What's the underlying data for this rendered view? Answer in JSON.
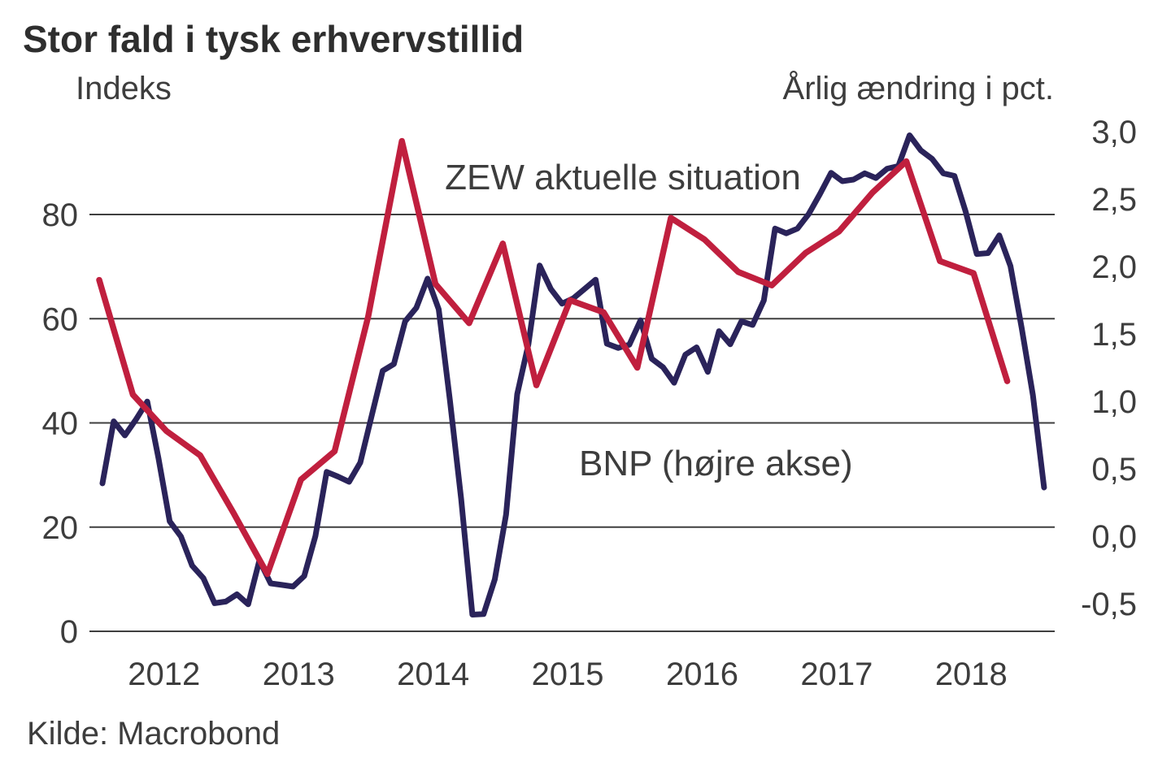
{
  "title": "Stor fald i tysk erhvervstillid",
  "source": "Kilde: Macrobond",
  "colors": {
    "zew_line": "#2A235A",
    "bnp_line": "#C01F3E",
    "gridline": "#3f3f3f",
    "text": "#3d3d3d",
    "title_text": "#2e2e2e"
  },
  "chart_data": {
    "type": "line",
    "title": "Stor fald i tysk erhvervstillid",
    "grid": "horizontal-only",
    "legend_position": "inline-annotations",
    "x_axis": {
      "tick_labels": [
        "2012",
        "2013",
        "2014",
        "2015",
        "2016",
        "2017",
        "2018"
      ]
    },
    "left_axis": {
      "label": "Indeks",
      "tick_labels": [
        "80",
        "60",
        "40",
        "20",
        "0"
      ],
      "tick_values": [
        80,
        60,
        40,
        20,
        0
      ]
    },
    "right_axis": {
      "label": "Årlig ændring i pct.",
      "tick_labels": [
        "3,0",
        "2,5",
        "2,0",
        "1,5",
        "1,0",
        "0,5",
        "0,0",
        "-0,5"
      ],
      "tick_values": [
        3.0,
        2.5,
        2.0,
        1.5,
        1.0,
        0.5,
        0.0,
        -0.5
      ]
    },
    "series": [
      {
        "name": "ZEW aktuelle situation",
        "axis": "left",
        "color": "#2A235A",
        "frequency": "monthly",
        "start": "2012-01",
        "end": "2019-01",
        "values": [
          28.4,
          40.3,
          37.6,
          40.7,
          44.1,
          33.2,
          21.1,
          18.2,
          12.6,
          10.2,
          5.4,
          5.7,
          7.1,
          5.2,
          13.6,
          9.2,
          8.9,
          8.6,
          10.6,
          18.3,
          30.6,
          29.7,
          28.7,
          32.4,
          41.2,
          50.0,
          51.3,
          59.5,
          62.1,
          67.7,
          61.8,
          44.3,
          25.4,
          3.2,
          3.3,
          10.0,
          22.4,
          45.5,
          55.1,
          70.2,
          65.7,
          62.9,
          63.9,
          65.7,
          67.5,
          55.2,
          54.4,
          55.0,
          59.7,
          52.3,
          50.7,
          47.7,
          53.1,
          54.5,
          49.8,
          57.6,
          55.1,
          59.5,
          58.8,
          63.5,
          77.3,
          76.4,
          77.3,
          80.1,
          83.9,
          88.0,
          86.4,
          86.7,
          87.9,
          87.0,
          88.8,
          89.3,
          95.2,
          92.3,
          90.7,
          87.9,
          87.4,
          80.6,
          72.4,
          72.6,
          76.0,
          70.1,
          58.2,
          45.3,
          27.6
        ]
      },
      {
        "name": "BNP (højre akse)",
        "axis": "right",
        "color": "#C01F3E",
        "frequency": "quarterly",
        "start": "2011-Q4",
        "end": "2018-Q3",
        "values": [
          1.9,
          1.05,
          0.78,
          0.6,
          0.17,
          -0.28,
          0.42,
          0.63,
          1.63,
          2.93,
          1.87,
          1.58,
          2.17,
          1.12,
          1.75,
          1.66,
          1.25,
          2.36,
          2.2,
          1.96,
          1.86,
          2.1,
          2.26,
          2.55,
          2.78,
          2.04,
          1.95,
          1.15
        ]
      }
    ]
  }
}
